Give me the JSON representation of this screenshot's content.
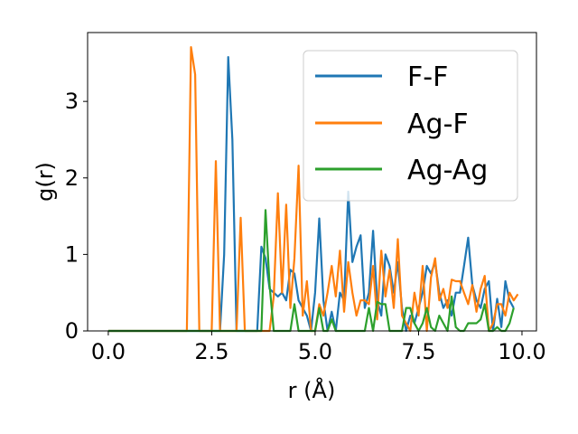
{
  "chart_data": {
    "type": "line",
    "title": "",
    "xlabel": "r (Å)",
    "ylabel": "g(r)",
    "xlim": [
      -0.5,
      10.35
    ],
    "ylim": [
      0,
      3.9
    ],
    "xticks": [
      0,
      2.5,
      5,
      7.5,
      10
    ],
    "xtick_labels": [
      "0.0",
      "2.5",
      "5.0",
      "7.5",
      "10.0"
    ],
    "yticks": [
      0,
      1,
      2,
      3
    ],
    "ytick_labels": [
      "0",
      "1",
      "2",
      "3"
    ],
    "grid": false,
    "legend_position": "top-right",
    "series": [
      {
        "name": "F-F",
        "color": "#1f77b4",
        "points": [
          [
            0,
            0
          ],
          [
            2.7,
            0
          ],
          [
            2.8,
            1.0
          ],
          [
            2.9,
            3.58
          ],
          [
            3.0,
            2.5
          ],
          [
            3.1,
            0
          ],
          [
            3.6,
            0
          ],
          [
            3.7,
            1.1
          ],
          [
            3.8,
            0.95
          ],
          [
            3.9,
            0.55
          ],
          [
            4.0,
            0.5
          ],
          [
            4.1,
            0.45
          ],
          [
            4.2,
            0.5
          ],
          [
            4.3,
            0.4
          ],
          [
            4.4,
            0.8
          ],
          [
            4.5,
            0.75
          ],
          [
            4.6,
            0.4
          ],
          [
            4.7,
            0.3
          ],
          [
            4.8,
            0.2
          ],
          [
            4.9,
            0
          ],
          [
            5.0,
            0.5
          ],
          [
            5.1,
            1.47
          ],
          [
            5.2,
            0.4
          ],
          [
            5.3,
            0
          ],
          [
            5.4,
            0.25
          ],
          [
            5.5,
            0
          ],
          [
            5.6,
            0.5
          ],
          [
            5.7,
            0.4
          ],
          [
            5.8,
            1.82
          ],
          [
            5.9,
            0.9
          ],
          [
            6.0,
            1.1
          ],
          [
            6.1,
            1.25
          ],
          [
            6.2,
            0.3
          ],
          [
            6.3,
            0.5
          ],
          [
            6.4,
            1.31
          ],
          [
            6.5,
            0.4
          ],
          [
            6.6,
            0.2
          ],
          [
            6.7,
            1.0
          ],
          [
            6.8,
            0.85
          ],
          [
            6.9,
            0.5
          ],
          [
            7.0,
            0.9
          ],
          [
            7.1,
            0.3
          ],
          [
            7.2,
            0
          ],
          [
            7.3,
            0.2
          ],
          [
            7.4,
            0.1
          ],
          [
            7.5,
            0.3
          ],
          [
            7.6,
            0.5
          ],
          [
            7.7,
            0.85
          ],
          [
            7.8,
            0.75
          ],
          [
            7.9,
            0.9
          ],
          [
            8.0,
            0.5
          ],
          [
            8.1,
            0.3
          ],
          [
            8.2,
            0.4
          ],
          [
            8.3,
            0.2
          ],
          [
            8.4,
            0.5
          ],
          [
            8.5,
            0.5
          ],
          [
            8.6,
            0.85
          ],
          [
            8.7,
            1.22
          ],
          [
            8.8,
            0.6
          ],
          [
            8.9,
            0.4
          ],
          [
            9.0,
            0.3
          ],
          [
            9.1,
            0.55
          ],
          [
            9.2,
            0.65
          ],
          [
            9.3,
            0
          ],
          [
            9.4,
            0.42
          ],
          [
            9.5,
            0.05
          ],
          [
            9.6,
            0.65
          ],
          [
            9.7,
            0.4
          ],
          [
            9.8,
            0.3
          ]
        ]
      },
      {
        "name": "Ag-F",
        "color": "#ff7f0e",
        "points": [
          [
            0,
            0
          ],
          [
            1.9,
            0
          ],
          [
            2.0,
            3.71
          ],
          [
            2.1,
            3.35
          ],
          [
            2.2,
            0
          ],
          [
            2.5,
            0
          ],
          [
            2.6,
            2.22
          ],
          [
            2.7,
            0
          ],
          [
            3.1,
            0
          ],
          [
            3.2,
            1.48
          ],
          [
            3.3,
            0
          ],
          [
            3.9,
            0
          ],
          [
            4.0,
            0.45
          ],
          [
            4.1,
            1.8
          ],
          [
            4.2,
            0.5
          ],
          [
            4.3,
            1.65
          ],
          [
            4.4,
            0.3
          ],
          [
            4.5,
            0.95
          ],
          [
            4.6,
            2.16
          ],
          [
            4.7,
            0.2
          ],
          [
            4.8,
            0.65
          ],
          [
            4.9,
            0
          ],
          [
            5.0,
            0
          ],
          [
            5.1,
            0.35
          ],
          [
            5.2,
            0.2
          ],
          [
            5.3,
            0.5
          ],
          [
            5.4,
            0.85
          ],
          [
            5.5,
            0.45
          ],
          [
            5.6,
            1.05
          ],
          [
            5.7,
            0.25
          ],
          [
            5.8,
            0.9
          ],
          [
            5.9,
            0.5
          ],
          [
            6.0,
            0.2
          ],
          [
            6.1,
            0.4
          ],
          [
            6.2,
            0.4
          ],
          [
            6.3,
            0.35
          ],
          [
            6.4,
            0.85
          ],
          [
            6.5,
            0.15
          ],
          [
            6.6,
            1.05
          ],
          [
            6.7,
            0.45
          ],
          [
            6.8,
            0.8
          ],
          [
            6.9,
            0.3
          ],
          [
            7.0,
            1.2
          ],
          [
            7.1,
            0.2
          ],
          [
            7.2,
            0.1
          ],
          [
            7.3,
            0
          ],
          [
            7.4,
            0.5
          ],
          [
            7.5,
            0.2
          ],
          [
            7.6,
            0.85
          ],
          [
            7.7,
            0
          ],
          [
            7.8,
            0.7
          ],
          [
            7.9,
            0.95
          ],
          [
            8.0,
            0.4
          ],
          [
            8.1,
            0.55
          ],
          [
            8.2,
            0.3
          ],
          [
            8.3,
            0.67
          ],
          [
            8.4,
            0.65
          ],
          [
            8.5,
            0.65
          ],
          [
            8.6,
            0.5
          ],
          [
            8.7,
            0.35
          ],
          [
            8.8,
            0.6
          ],
          [
            8.9,
            0.25
          ],
          [
            9.0,
            0.55
          ],
          [
            9.1,
            0.72
          ],
          [
            9.2,
            0
          ],
          [
            9.3,
            0.1
          ],
          [
            9.4,
            0.35
          ],
          [
            9.5,
            0.35
          ],
          [
            9.6,
            0.2
          ],
          [
            9.7,
            0.5
          ],
          [
            9.8,
            0.4
          ],
          [
            9.9,
            0.48
          ]
        ]
      },
      {
        "name": "Ag-Ag",
        "color": "#2ca02c",
        "points": [
          [
            0,
            0
          ],
          [
            3.7,
            0
          ],
          [
            3.8,
            1.58
          ],
          [
            3.9,
            0.6
          ],
          [
            4.0,
            0
          ],
          [
            4.4,
            0
          ],
          [
            4.5,
            0.35
          ],
          [
            4.6,
            0
          ],
          [
            5.0,
            0
          ],
          [
            5.1,
            0.3
          ],
          [
            5.2,
            0
          ],
          [
            5.3,
            0
          ],
          [
            5.4,
            0.15
          ],
          [
            5.5,
            0
          ],
          [
            6.2,
            0
          ],
          [
            6.3,
            0.3
          ],
          [
            6.4,
            0
          ],
          [
            6.5,
            0.38
          ],
          [
            6.6,
            0.35
          ],
          [
            6.7,
            0.35
          ],
          [
            6.8,
            0
          ],
          [
            7.1,
            0
          ],
          [
            7.2,
            0.3
          ],
          [
            7.3,
            0.3
          ],
          [
            7.4,
            0.1
          ],
          [
            7.5,
            0
          ],
          [
            7.6,
            0.1
          ],
          [
            7.7,
            0.3
          ],
          [
            7.8,
            0.05
          ],
          [
            7.9,
            0
          ],
          [
            8.0,
            0.2
          ],
          [
            8.1,
            0.1
          ],
          [
            8.2,
            0
          ],
          [
            8.3,
            0.45
          ],
          [
            8.4,
            0.05
          ],
          [
            8.5,
            0
          ],
          [
            8.6,
            0
          ],
          [
            8.7,
            0.1
          ],
          [
            8.8,
            0.1
          ],
          [
            8.9,
            0.1
          ],
          [
            9.0,
            0.15
          ],
          [
            9.1,
            0.35
          ],
          [
            9.2,
            0
          ],
          [
            9.3,
            0
          ],
          [
            9.4,
            0.05
          ],
          [
            9.5,
            0
          ],
          [
            9.6,
            0
          ],
          [
            9.7,
            0.1
          ],
          [
            9.8,
            0.3
          ]
        ]
      }
    ]
  }
}
